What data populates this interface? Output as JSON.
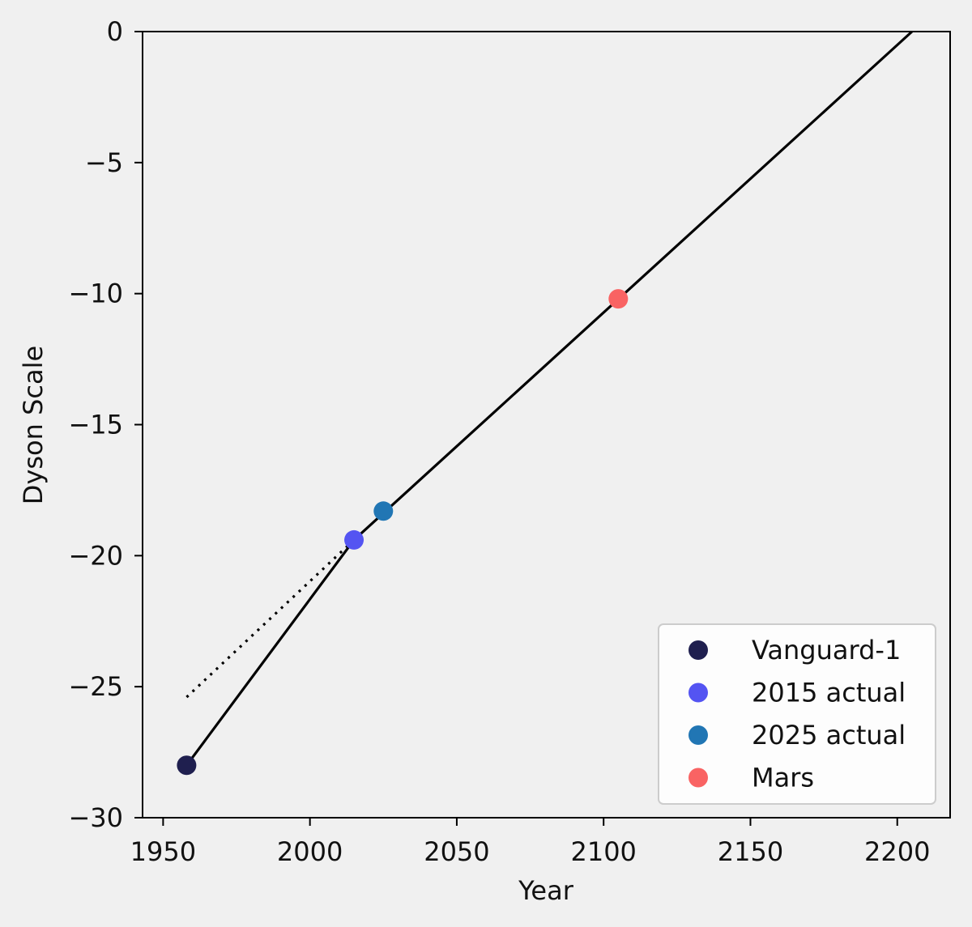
{
  "chart_data": {
    "type": "line",
    "title": "",
    "xlabel": "Year",
    "ylabel": "Dyson Scale",
    "xlim": [
      1943,
      2218
    ],
    "ylim": [
      -30,
      0
    ],
    "x_ticks": [
      1950,
      2000,
      2050,
      2100,
      2150,
      2200
    ],
    "y_ticks": [
      0,
      -5,
      -10,
      -15,
      -20,
      -25,
      -30
    ],
    "x_tick_labels": [
      "1950",
      "2000",
      "2050",
      "2100",
      "2150",
      "2200"
    ],
    "y_tick_labels": [
      "0",
      "−5",
      "−10",
      "−15",
      "−20",
      "−25",
      "−30"
    ],
    "grid": false,
    "legend_position": "lower-right",
    "lines": [
      {
        "style": "solid",
        "color": "#000000",
        "x": [
          1958,
          2015,
          2205
        ],
        "y": [
          -28.0,
          -19.4,
          0.0
        ]
      },
      {
        "style": "dotted",
        "color": "#000000",
        "x": [
          1958,
          2015
        ],
        "y": [
          -25.4,
          -19.4
        ]
      }
    ],
    "series": [
      {
        "name": "Vanguard-1",
        "color": "#1f1f4f",
        "x": [
          1958
        ],
        "y": [
          -28.0
        ]
      },
      {
        "name": "2015 actual",
        "color": "#5454f2",
        "x": [
          2015
        ],
        "y": [
          -19.4
        ]
      },
      {
        "name": "2025 actual",
        "color": "#2176b4",
        "x": [
          2025
        ],
        "y": [
          -18.3
        ]
      },
      {
        "name": "Mars",
        "color": "#f96363",
        "x": [
          2105
        ],
        "y": [
          -10.2
        ]
      }
    ]
  }
}
